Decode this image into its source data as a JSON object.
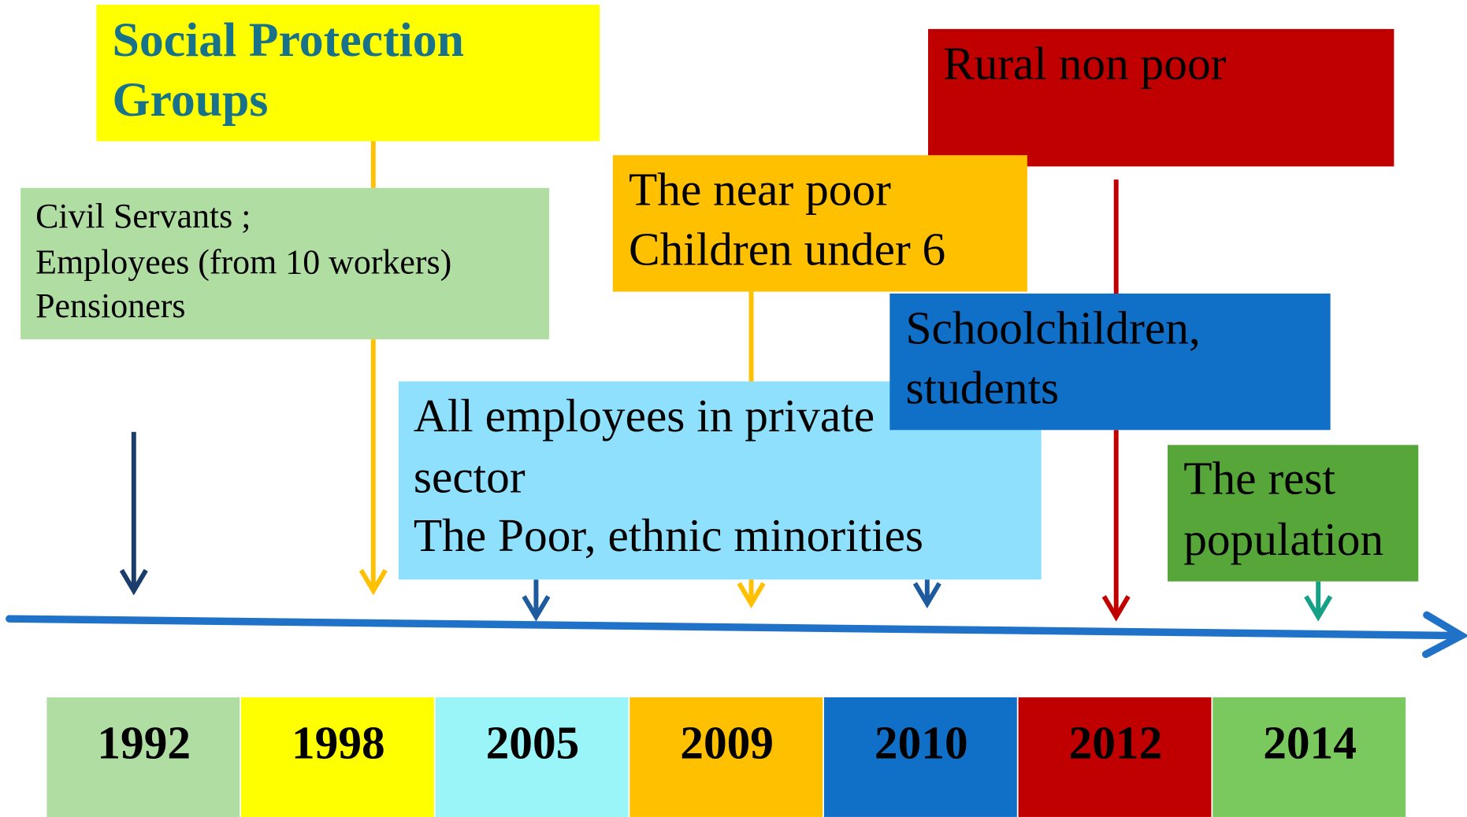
{
  "header": {
    "title": [
      "Social Protection",
      "Groups"
    ]
  },
  "groups": [
    {
      "lines": [
        "Civil Servants ;",
        "Employees  (from 10 workers)",
        "Pensioners"
      ]
    },
    {
      "lines": [
        "Rural non poor"
      ]
    },
    {
      "lines": [
        "The near poor",
        "Children under 6"
      ]
    },
    {
      "lines": [
        "All employees in private",
        "sector",
        "The Poor, ethnic minorities"
      ]
    },
    {
      "lines": [
        "Schoolchildren,",
        "students"
      ]
    },
    {
      "lines": [
        "The rest",
        "population"
      ]
    }
  ],
  "timeline": {
    "years": [
      "1992",
      "1998",
      "2005",
      "2009",
      "2010",
      "2012",
      "2014"
    ]
  }
}
